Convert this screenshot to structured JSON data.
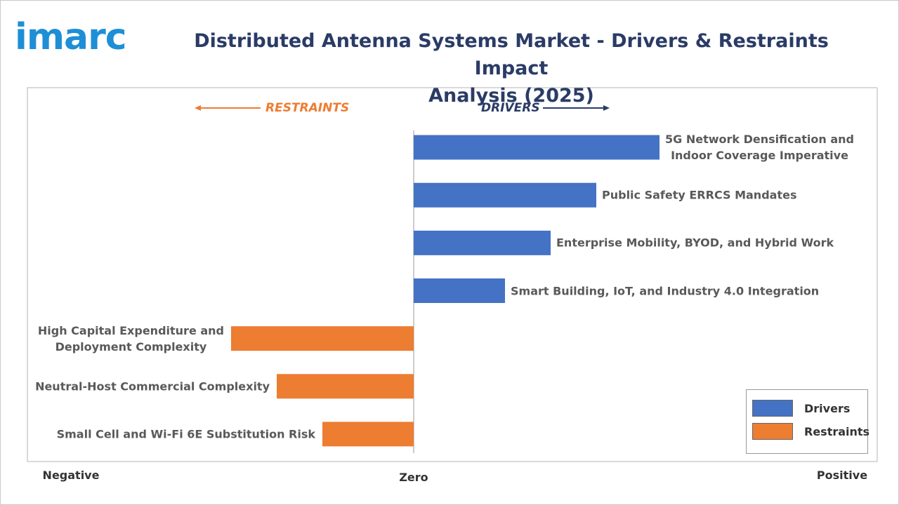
{
  "logo": "imarc",
  "chart_data": {
    "type": "diverging-bar",
    "title": "Distributed Antenna Systems Market - Drivers & Restraints Impact\nAnalysis (2025)",
    "restraints_label": "RESTRAINTS",
    "drivers_label": "DRIVERS",
    "axis_labels": {
      "negative": "Negative",
      "zero": "Zero",
      "positive": "Positive"
    },
    "categories": [
      "5G Network Densification and\nIndoor Coverage Imperative",
      "Public Safety ERRCS Mandates",
      "Enterprise Mobility, BYOD, and Hybrid Work",
      "Smart Building, IoT, and Industry 4.0 Integration",
      "High Capital Expenditure and\nDeployment Complexity",
      "Neutral-Host Commercial Complexity",
      "Small Cell and Wi-Fi 6E Substitution Risk"
    ],
    "series": [
      {
        "name": "Drivers",
        "color": "#4472c4",
        "values": [
          3.5,
          2.6,
          1.95,
          1.3,
          null,
          null,
          null
        ]
      },
      {
        "name": "Restraints",
        "color": "#ed7d31",
        "values": [
          null,
          null,
          null,
          null,
          -2.6,
          -1.95,
          -1.3
        ]
      }
    ],
    "xlim": [
      -5.5,
      6.6
    ],
    "legend": "bottom-right"
  }
}
